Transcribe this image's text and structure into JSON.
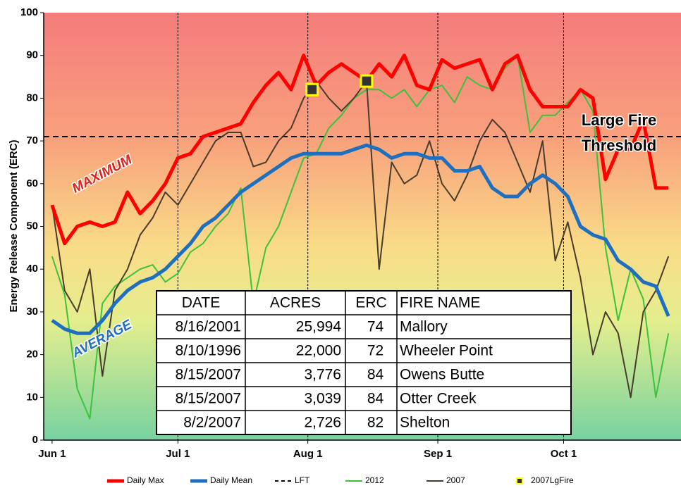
{
  "chart_data": {
    "type": "line",
    "ylabel": "Energy Release Component (ERC)",
    "xlim": [
      -2,
      150
    ],
    "xticks": [
      {
        "value": 0,
        "label": "Jun 1"
      },
      {
        "value": 30,
        "label": "Jul 1"
      },
      {
        "value": 61,
        "label": "Aug 1"
      },
      {
        "value": 92,
        "label": "Sep 1"
      },
      {
        "value": 122,
        "label": "Oct 1"
      }
    ],
    "ylim": [
      0,
      100
    ],
    "yticks": [
      0,
      10,
      20,
      30,
      40,
      50,
      60,
      70,
      80,
      90,
      100
    ],
    "x": [
      0,
      3,
      6,
      9,
      12,
      15,
      18,
      21,
      24,
      27,
      30,
      33,
      36,
      39,
      42,
      45,
      48,
      51,
      54,
      57,
      60,
      63,
      66,
      69,
      72,
      75,
      78,
      81,
      84,
      87,
      90,
      93,
      96,
      99,
      102,
      105,
      108,
      111,
      114,
      117,
      120,
      123,
      126,
      129,
      132,
      135,
      138,
      141,
      144,
      147
    ],
    "series": [
      {
        "name": "2012",
        "color": "#3cc23c",
        "width": 2,
        "values": [
          43,
          34,
          12,
          5,
          32,
          36,
          38,
          40,
          41,
          37,
          39,
          44,
          46,
          50,
          53,
          59,
          32,
          45,
          50,
          58,
          66,
          67,
          73,
          76,
          80,
          82,
          82,
          80,
          82,
          78,
          82,
          83,
          79,
          85,
          83,
          82,
          87,
          90,
          72,
          76,
          76,
          79,
          82,
          77,
          45,
          28,
          40,
          33,
          10,
          25
        ]
      },
      {
        "name": "2007",
        "color": "#4a3c2c",
        "width": 2,
        "values": [
          55,
          35,
          30,
          40,
          15,
          35,
          40,
          48,
          52,
          58,
          55,
          60,
          65,
          70,
          72,
          72,
          64,
          65,
          70,
          73,
          80,
          84,
          80,
          77,
          80,
          84,
          40,
          65,
          60,
          62,
          70,
          60,
          56,
          62,
          70,
          75,
          72,
          65,
          58,
          70,
          42,
          51,
          38,
          20,
          30,
          25,
          10,
          30,
          35,
          43
        ]
      },
      {
        "name": "Daily Max",
        "color": "#ff0000",
        "width": 5,
        "values": [
          55,
          46,
          50,
          51,
          50,
          51,
          58,
          53,
          56,
          60,
          66,
          67,
          71,
          72,
          73,
          74,
          79,
          83,
          86,
          82,
          90,
          83,
          86,
          88,
          86,
          84,
          88,
          85,
          90,
          83,
          82,
          89,
          87,
          88,
          89,
          82,
          88,
          90,
          82,
          78,
          78,
          78,
          82,
          80,
          61,
          68,
          68,
          75,
          59,
          59
        ]
      },
      {
        "name": "Daily Mean",
        "color": "#1f6fc0",
        "width": 5,
        "values": [
          28,
          26,
          25,
          25,
          28,
          32,
          35,
          37,
          38,
          40,
          43,
          46,
          50,
          52,
          55,
          58,
          60,
          62,
          64,
          66,
          67,
          67,
          67,
          67,
          68,
          69,
          68,
          66,
          67,
          67,
          66,
          66,
          63,
          63,
          64,
          59,
          57,
          57,
          60,
          62,
          60,
          57,
          50,
          48,
          47,
          42,
          40,
          37,
          36,
          29
        ]
      }
    ],
    "reference_line": {
      "name": "LFT",
      "value": 71,
      "color": "#000000"
    },
    "markers": {
      "name": "2007LgFire",
      "x": [
        62,
        75
      ],
      "values": [
        82,
        84
      ],
      "color": "#ffff00"
    },
    "legend_order": [
      "Daily Max",
      "Daily Mean",
      "LFT",
      "2012",
      "2007",
      "2007LgFire"
    ],
    "annotations": [
      "MAXIMUM",
      "AVERAGE",
      "Large Fire",
      "Threshold"
    ],
    "table": {
      "header": [
        "DATE",
        "ACRES",
        "ERC",
        "FIRE NAME"
      ],
      "rows": [
        [
          "8/16/2001",
          "25,994",
          "74",
          "Mallory"
        ],
        [
          "8/10/1996",
          "22,000",
          "72",
          "Wheeler Point"
        ],
        [
          "8/15/2007",
          "3,776",
          "84",
          "Owens Butte"
        ],
        [
          "8/15/2007",
          "3,039",
          "84",
          "Otter Creek"
        ],
        [
          "8/2/2007",
          "2,726",
          "82",
          "Shelton"
        ]
      ]
    }
  }
}
